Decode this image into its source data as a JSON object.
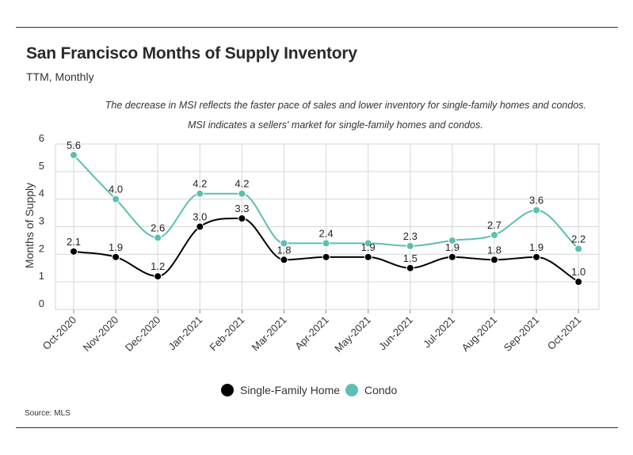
{
  "title": "San Francisco Months of Supply Inventory",
  "subtitle": "TTM, Monthly",
  "notes": [
    "The decrease in MSI reflects the faster pace of sales and lower inventory for single-family homes and condos.",
    "MSI indicates a sellers' market for single-family homes and condos."
  ],
  "source": "Source:  MLS",
  "chart_data": {
    "type": "line",
    "categories": [
      "Oct-2020",
      "Nov-2020",
      "Dec-2020",
      "Jan-2021",
      "Feb-2021",
      "Mar-2021",
      "Apr-2021",
      "May-2021",
      "Jun-2021",
      "Jul-2021",
      "Aug-2021",
      "Sep-2021",
      "Oct-2021"
    ],
    "series": [
      {
        "name": "Single-Family Home",
        "color": "#000000",
        "values": [
          2.1,
          1.9,
          1.2,
          3.0,
          3.3,
          1.8,
          1.9,
          1.9,
          1.5,
          1.9,
          1.8,
          1.9,
          1.0
        ],
        "labels": [
          "2.1",
          "1.9",
          "1.2",
          "3.0",
          "3.3",
          "1.8",
          "",
          "1.9",
          "1.5",
          "1.9",
          "1.8",
          "1.9",
          "1.0"
        ]
      },
      {
        "name": "Condo",
        "color": "#5dbfb0",
        "values": [
          5.6,
          4.0,
          2.6,
          4.2,
          4.2,
          2.4,
          2.4,
          2.4,
          2.3,
          2.5,
          2.7,
          3.6,
          2.2
        ],
        "labels": [
          "5.6",
          "4.0",
          "2.6",
          "4.2",
          "4.2",
          "",
          "2.4",
          "",
          "2.3",
          "",
          "2.7",
          "3.6",
          "2.2"
        ]
      }
    ],
    "ylabel": "Months of Supply",
    "ylim": [
      0,
      6
    ],
    "yticks": [
      "0",
      "1",
      "2",
      "3",
      "4",
      "5",
      "6"
    ],
    "grid": true,
    "legend_position": "bottom-center"
  }
}
